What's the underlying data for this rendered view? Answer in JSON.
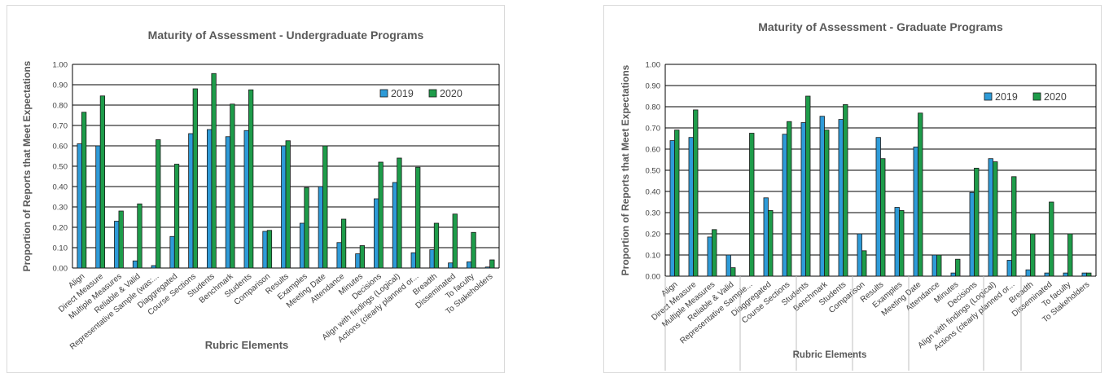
{
  "chart_data": [
    {
      "type": "bar",
      "title": "Maturity of Assessment - Undergraduate Programs",
      "xlabel": "Rubric Elements",
      "ylabel": "Proportion of Reports that Meet Expectations",
      "ylim": [
        0,
        1
      ],
      "yticks": [
        "0.00",
        "0.10",
        "0.20",
        "0.30",
        "0.40",
        "0.50",
        "0.60",
        "0.70",
        "0.80",
        "0.90",
        "1.00"
      ],
      "grid": true,
      "legend_position": "top-right",
      "categories": [
        "Align",
        "Direct Measure",
        "Multiple Measures",
        "Reliable & Valid",
        "Representative Sample (was:...",
        "Diaggregated",
        "Course Sections",
        "Students",
        "Benchmark",
        "Students",
        "Comparison",
        "Results",
        "Examples",
        "Meeting Date",
        "Attendance",
        "Minutes",
        "Decisions",
        "Align with findings (Logical)",
        "Actions (clearly planned or...",
        "Breadth",
        "Disseminated",
        "To faculty",
        "To Stakeholders"
      ],
      "series": [
        {
          "name": "2019",
          "color": "#2e9bd8",
          "values": [
            0.61,
            0.6,
            0.23,
            0.035,
            0.012,
            0.155,
            0.66,
            0.68,
            0.645,
            0.675,
            0.18,
            0.6,
            0.22,
            0.4,
            0.125,
            0.07,
            0.34,
            0.42,
            0.075,
            0.09,
            0.025,
            0.03,
            0.005
          ]
        },
        {
          "name": "2020",
          "color": "#1e9c4a",
          "values": [
            0.765,
            0.845,
            0.28,
            0.315,
            0.63,
            0.51,
            0.88,
            0.955,
            0.805,
            0.875,
            0.185,
            0.625,
            0.395,
            0.6,
            0.24,
            0.11,
            0.52,
            0.54,
            0.495,
            0.22,
            0.265,
            0.175,
            0.04
          ]
        }
      ]
    },
    {
      "type": "bar",
      "title": "Maturity of Assessment - Graduate Programs",
      "xlabel": "Rubric Elements",
      "ylabel": "Proportion of Reports that Meet Expectations",
      "ylim": [
        0,
        1
      ],
      "yticks": [
        "0.00",
        "0.10",
        "0.20",
        "0.30",
        "0.40",
        "0.50",
        "0.60",
        "0.70",
        "0.80",
        "0.90",
        "1.00"
      ],
      "grid": true,
      "legend_position": "top-right",
      "categories": [
        "Align",
        "Direct Measure",
        "Multiple Measures",
        "Reliable & Valid",
        "Representative Sample...",
        "Diaggregated",
        "Course Sections",
        "Students",
        "Benchmark",
        "Students",
        "Comparison",
        "Results",
        "Examples",
        "Meeting Date",
        "Attendance",
        "Minutes",
        "Decisions",
        "Align with findings (Logical)",
        "Actions (clearly planned or...",
        "Breadth",
        "Disseminated",
        "To faculty",
        "To Stakeholders"
      ],
      "series": [
        {
          "name": "2019",
          "color": "#2e9bd8",
          "values": [
            0.64,
            0.655,
            0.185,
            0.1,
            0.0,
            0.37,
            0.67,
            0.725,
            0.755,
            0.74,
            0.2,
            0.655,
            0.325,
            0.61,
            0.1,
            0.015,
            0.395,
            0.555,
            0.075,
            0.03,
            0.015,
            0.015,
            0.015
          ]
        },
        {
          "name": "2020",
          "color": "#1e9c4a",
          "values": [
            0.69,
            0.785,
            0.22,
            0.04,
            0.675,
            0.31,
            0.73,
            0.85,
            0.69,
            0.81,
            0.12,
            0.555,
            0.31,
            0.77,
            0.1,
            0.08,
            0.51,
            0.54,
            0.47,
            0.2,
            0.35,
            0.2,
            0.015
          ]
        }
      ]
    }
  ]
}
